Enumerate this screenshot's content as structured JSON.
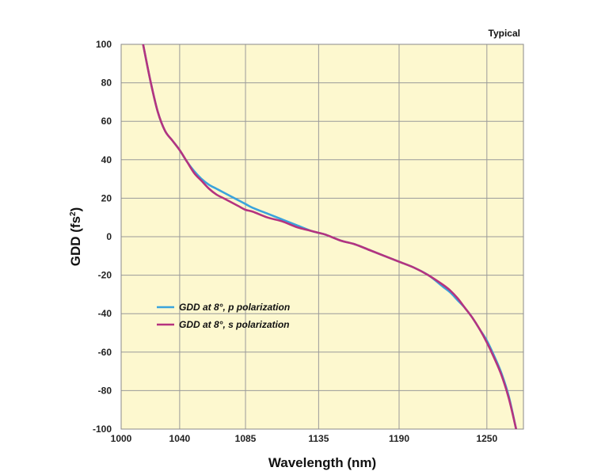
{
  "chart_data": {
    "type": "line",
    "annotation": "Typical",
    "xlabel": "Wavelength (nm)",
    "ylabel_main": "GDD (fs",
    "ylabel_sup": "2",
    "ylabel_close": ")",
    "xlim": [
      1000,
      1275
    ],
    "ylim": [
      -100,
      100
    ],
    "x_ticks": [
      1000,
      1040,
      1085,
      1135,
      1190,
      1250
    ],
    "x_tick_labels": [
      "1000",
      "1040",
      "1085",
      "1135",
      "1190",
      "1250"
    ],
    "y_ticks": [
      100,
      80,
      60,
      40,
      20,
      0,
      -20,
      -40,
      -60,
      -80,
      -100
    ],
    "y_tick_labels": [
      "100",
      "80",
      "60",
      "40",
      "20",
      "0",
      "-20",
      "-40",
      "-60",
      "-80",
      "-100"
    ],
    "grid": true,
    "legend_position": "lower-left",
    "plot_background": "#fdf8cf",
    "grid_color": "#9a9a9a",
    "series": [
      {
        "name": "GDD at 8°, p polarization",
        "color": "#3aa3dc",
        "x": [
          1015,
          1020,
          1025,
          1030,
          1035,
          1040,
          1045,
          1050,
          1055,
          1060,
          1065,
          1070,
          1075,
          1080,
          1085,
          1090,
          1100,
          1110,
          1120,
          1130,
          1135,
          1140,
          1150,
          1160,
          1170,
          1180,
          1190,
          1200,
          1210,
          1220,
          1225,
          1230,
          1235,
          1240,
          1245,
          1250,
          1255,
          1260,
          1265,
          1270
        ],
        "y": [
          100,
          81,
          65,
          55,
          50,
          45,
          39,
          34,
          30,
          27,
          25,
          23,
          21,
          19,
          17,
          15,
          12,
          9,
          6,
          3,
          2,
          1,
          -2,
          -4,
          -7,
          -10,
          -13,
          -16,
          -20,
          -26,
          -29,
          -33,
          -37,
          -42,
          -48,
          -54,
          -62,
          -71,
          -83,
          -100
        ]
      },
      {
        "name": "GDD at 8°, s polarization",
        "color": "#b5337f",
        "x": [
          1015,
          1020,
          1025,
          1030,
          1035,
          1040,
          1045,
          1050,
          1055,
          1060,
          1065,
          1070,
          1075,
          1080,
          1085,
          1090,
          1100,
          1110,
          1120,
          1130,
          1135,
          1140,
          1150,
          1160,
          1170,
          1180,
          1190,
          1200,
          1210,
          1220,
          1225,
          1230,
          1235,
          1240,
          1245,
          1250,
          1255,
          1260,
          1265,
          1270
        ],
        "y": [
          100,
          81,
          65,
          55,
          50,
          45,
          39,
          33,
          29,
          25,
          22,
          20,
          18,
          16,
          14,
          13,
          10,
          8,
          5,
          3,
          2,
          1,
          -2,
          -4,
          -7,
          -10,
          -13,
          -16,
          -20,
          -25,
          -28,
          -32,
          -37,
          -42,
          -48,
          -55,
          -63,
          -72,
          -84,
          -100
        ]
      }
    ]
  }
}
